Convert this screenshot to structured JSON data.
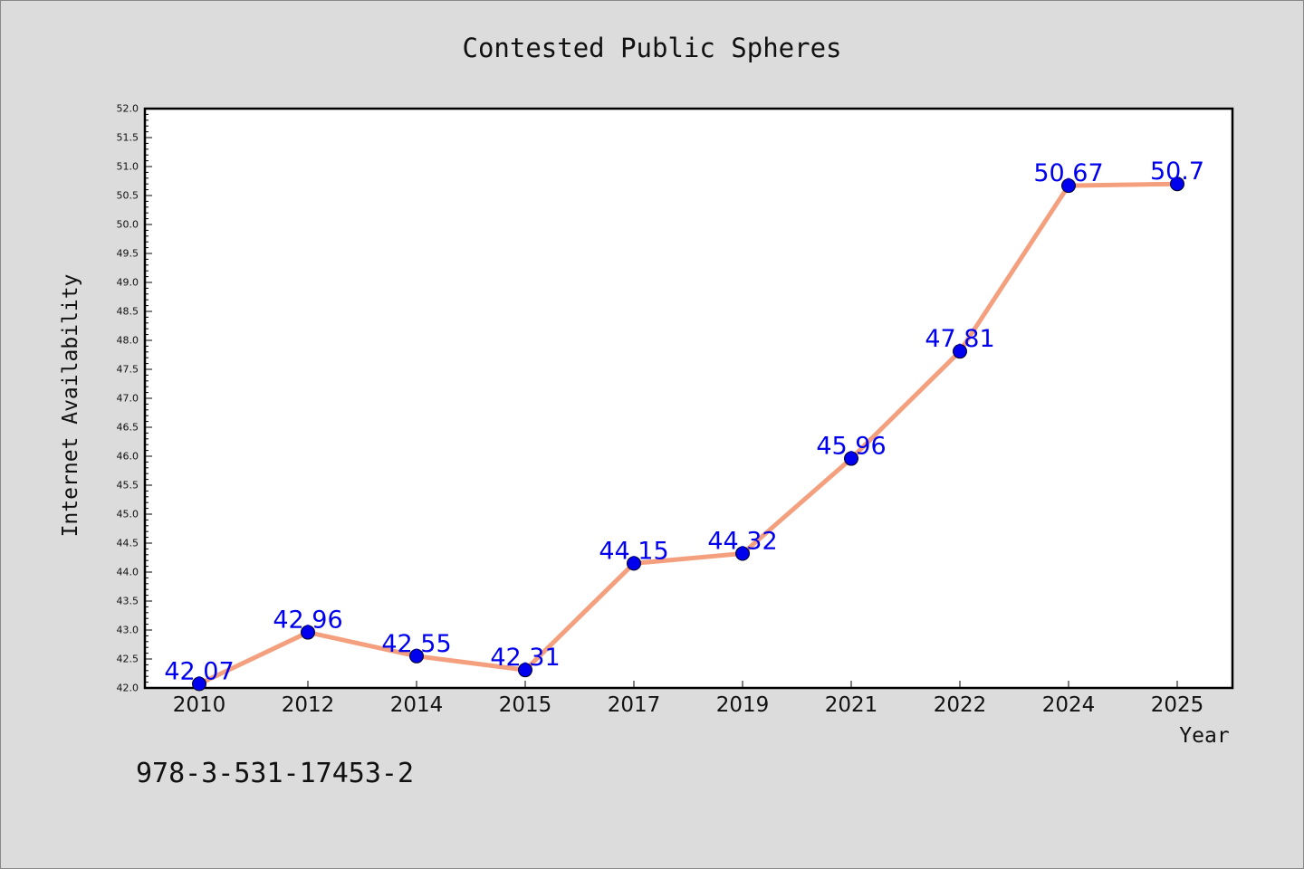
{
  "chart_data": {
    "type": "line",
    "title": "Contested Public Spheres",
    "xlabel": "Year",
    "ylabel": "Internet Availability",
    "categories": [
      "2010",
      "2012",
      "2014",
      "2015",
      "2017",
      "2019",
      "2021",
      "2022",
      "2024",
      "2025"
    ],
    "values": [
      42.07,
      42.96,
      42.55,
      42.31,
      44.15,
      44.32,
      45.96,
      47.81,
      50.67,
      50.7
    ],
    "value_labels": [
      "42.07",
      "42.96",
      "42.55",
      "42.31",
      "44.15",
      "44.32",
      "45.96",
      "47.81",
      "50.67",
      "50.7"
    ],
    "ylim": [
      42.0,
      52.0
    ],
    "y_major_step": 0.5,
    "y_minor_step": 0.1,
    "grid": false,
    "legend": "none",
    "colors": {
      "line": "#f4a07e",
      "marker": "#0000ee",
      "value_label": "#0000ee",
      "text": "#111111",
      "background": "#dcdcdc",
      "plot_background": "#ffffff"
    },
    "annotation": "978-3-531-17453-2"
  }
}
